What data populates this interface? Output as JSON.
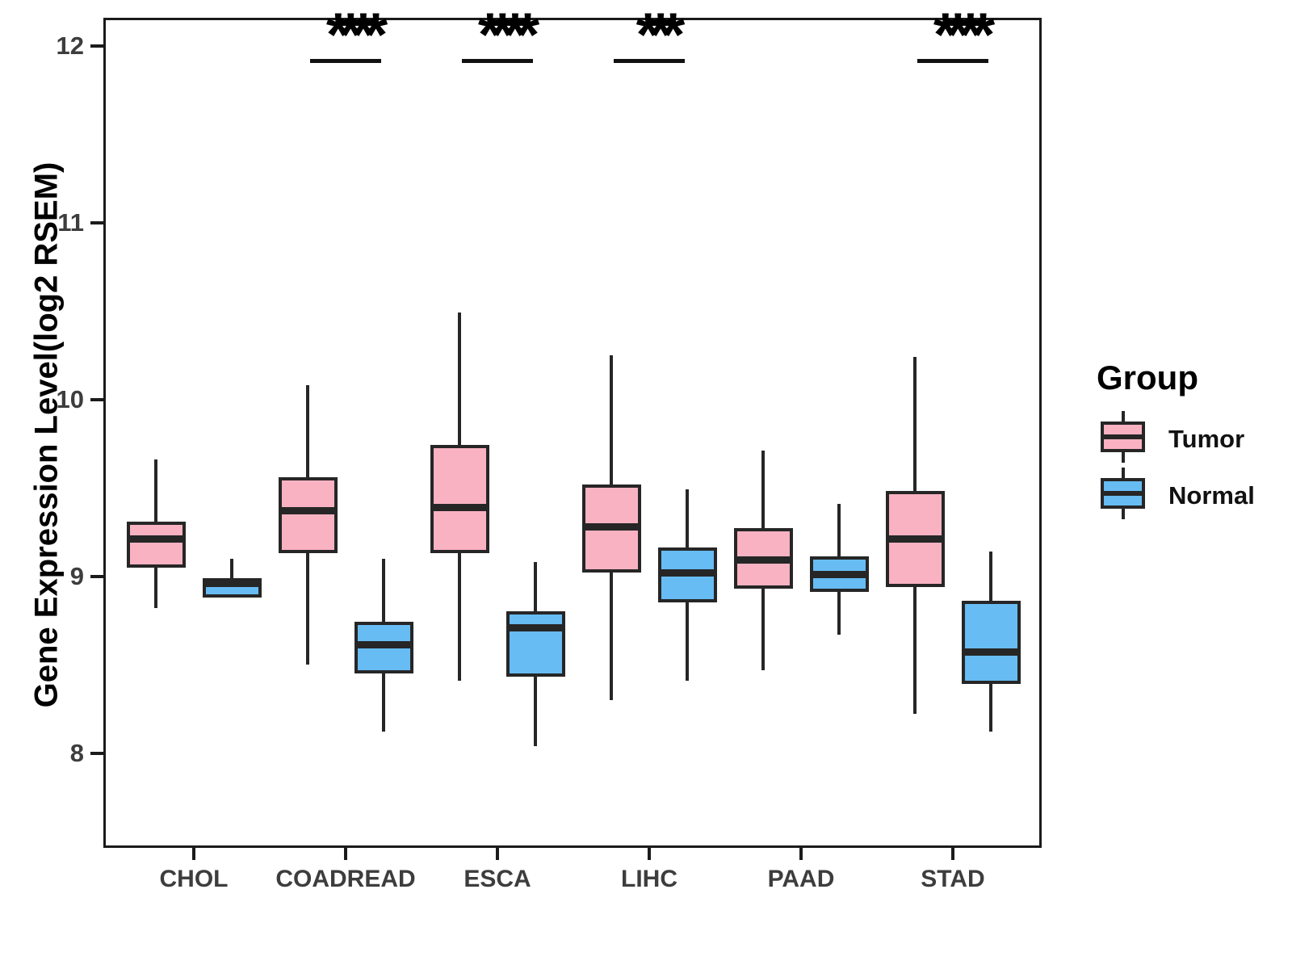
{
  "y_axis": {
    "label": "Gene Expression Level(log2 RSEM)",
    "ticks": [
      "8",
      "9",
      "10",
      "11",
      "12"
    ],
    "tick_values": [
      8,
      9,
      10,
      11,
      12
    ],
    "range_shown": [
      7.45,
      12.15
    ]
  },
  "x_axis": {
    "categories": [
      "CHOL",
      "COADREAD",
      "ESCA",
      "LIHC",
      "PAAD",
      "STAD"
    ]
  },
  "legend": {
    "title": "Group",
    "items": [
      {
        "label": "Tumor",
        "color": "#F9B2C2"
      },
      {
        "label": "Normal",
        "color": "#67BCF3"
      }
    ]
  },
  "colors": {
    "tumor_fill": "#F9B2C2",
    "normal_fill": "#67BCF3",
    "line": "#262626",
    "panel_border": "#1b1b1b",
    "axis_text": "#3d3d3d"
  },
  "chart_data": {
    "type": "boxplot",
    "title": "",
    "xlabel": "",
    "ylabel": "Gene Expression Level(log2 RSEM)",
    "ylim": [
      7.45,
      12.15
    ],
    "grid": false,
    "legend_position": "right",
    "categories": [
      "CHOL",
      "COADREAD",
      "ESCA",
      "LIHC",
      "PAAD",
      "STAD"
    ],
    "series": [
      {
        "name": "Tumor",
        "color": "#F9B2C2",
        "boxes": [
          {
            "category": "CHOL",
            "min": 8.82,
            "q1": 9.05,
            "median": 9.21,
            "q3": 9.31,
            "max": 9.66
          },
          {
            "category": "COADREAD",
            "min": 8.5,
            "q1": 9.13,
            "median": 9.37,
            "q3": 9.56,
            "max": 10.08
          },
          {
            "category": "ESCA",
            "min": 8.41,
            "q1": 9.13,
            "median": 9.39,
            "q3": 9.74,
            "max": 10.49
          },
          {
            "category": "LIHC",
            "min": 8.3,
            "q1": 9.02,
            "median": 9.28,
            "q3": 9.52,
            "max": 10.25
          },
          {
            "category": "PAAD",
            "min": 8.47,
            "q1": 8.93,
            "median": 9.09,
            "q3": 9.27,
            "max": 9.71
          },
          {
            "category": "STAD",
            "min": 8.22,
            "q1": 8.94,
            "median": 9.21,
            "q3": 9.48,
            "max": 10.24
          }
        ]
      },
      {
        "name": "Normal",
        "color": "#67BCF3",
        "boxes": [
          {
            "category": "CHOL",
            "min": 8.88,
            "q1": 8.88,
            "median": 8.96,
            "q3": 8.99,
            "max": 9.1
          },
          {
            "category": "COADREAD",
            "min": 8.12,
            "q1": 8.45,
            "median": 8.61,
            "q3": 8.74,
            "max": 9.1
          },
          {
            "category": "ESCA",
            "min": 8.04,
            "q1": 8.43,
            "median": 8.71,
            "q3": 8.8,
            "max": 9.08
          },
          {
            "category": "LIHC",
            "min": 8.41,
            "q1": 8.85,
            "median": 9.02,
            "q3": 9.16,
            "max": 9.49
          },
          {
            "category": "PAAD",
            "min": 8.67,
            "q1": 8.91,
            "median": 9.01,
            "q3": 9.11,
            "max": 9.41
          },
          {
            "category": "STAD",
            "min": 8.12,
            "q1": 8.39,
            "median": 8.57,
            "q3": 8.86,
            "max": 9.14
          }
        ]
      }
    ],
    "significance": [
      {
        "category": "COADREAD",
        "label": "****"
      },
      {
        "category": "ESCA",
        "label": "****"
      },
      {
        "category": "LIHC",
        "label": "***"
      },
      {
        "category": "STAD",
        "label": "****"
      }
    ]
  }
}
